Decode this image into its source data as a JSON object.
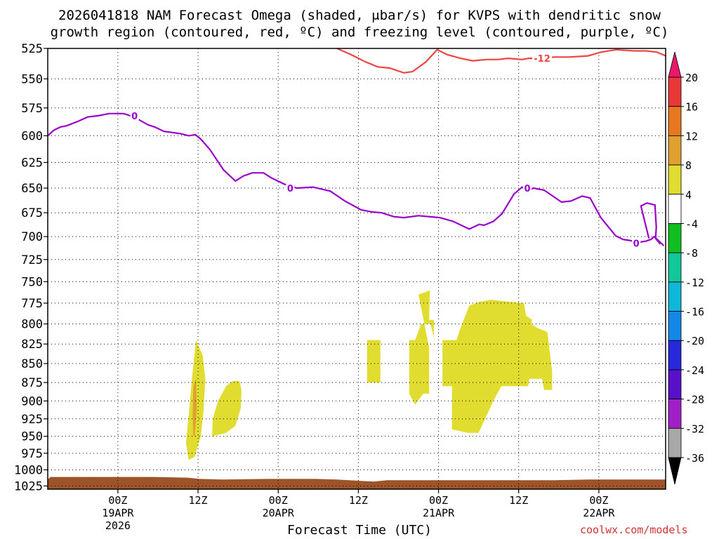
{
  "title": {
    "line1": "2026041818 NAM Forecast Omega (shaded, μbar/s) for KVPS with dendritic snow",
    "line2": "growth region (contoured, red, ºC) and freezing level (contoured, purple, ºC)"
  },
  "watermark": "coolwx.com/models",
  "colors": {
    "dgz_contour": "#ee4444",
    "freezing_contour": "#9900cc",
    "terrain": "#9c5428",
    "omega_4_8": "#e0dc30",
    "omega_8_12": "#e0a030",
    "watermark": "#cc3333"
  },
  "chart_data": {
    "type": "time-height cross section",
    "xlabel": "Forecast Time (UTC)",
    "ylabel": "",
    "y_scale": "log-pressure",
    "y_reversed": true,
    "ylim_hpa": [
      1030,
      525
    ],
    "xlim_hours": [
      -4.5,
      88
    ],
    "grid": "dotted",
    "y_ticks": [
      525,
      550,
      575,
      600,
      625,
      650,
      675,
      700,
      725,
      750,
      775,
      800,
      825,
      850,
      875,
      900,
      925,
      950,
      975,
      1000,
      1025
    ],
    "x_ticks": [
      {
        "hour": 6,
        "label": "00Z",
        "sub1": "19APR",
        "sub2": "2026"
      },
      {
        "hour": 18,
        "label": "12Z",
        "sub1": "",
        "sub2": ""
      },
      {
        "hour": 30,
        "label": "00Z",
        "sub1": "20APR",
        "sub2": ""
      },
      {
        "hour": 42,
        "label": "12Z",
        "sub1": "",
        "sub2": ""
      },
      {
        "hour": 54,
        "label": "00Z",
        "sub1": "21APR",
        "sub2": ""
      },
      {
        "hour": 66,
        "label": "12Z",
        "sub1": "",
        "sub2": ""
      },
      {
        "hour": 78,
        "label": "00Z",
        "sub1": "22APR",
        "sub2": ""
      }
    ],
    "colorbar": {
      "min_label": "-36",
      "max_label": "20",
      "intervals": [
        {
          "low": -36,
          "high": -32,
          "color": "#a8a8a8"
        },
        {
          "low": -32,
          "high": -28,
          "color": "#a020c8"
        },
        {
          "low": -28,
          "high": -24,
          "color": "#5810c8"
        },
        {
          "low": -24,
          "high": -20,
          "color": "#2828dc"
        },
        {
          "low": -20,
          "high": -16,
          "color": "#1488e8"
        },
        {
          "low": -16,
          "high": -12,
          "color": "#10b8d8"
        },
        {
          "low": -12,
          "high": -8,
          "color": "#10c898"
        },
        {
          "low": -8,
          "high": -4,
          "color": "#10c020"
        },
        {
          "low": -4,
          "high": 4,
          "color": "#ffffff"
        },
        {
          "low": 4,
          "high": 8,
          "color": "#e0dc30"
        },
        {
          "low": 8,
          "high": 12,
          "color": "#e0a030"
        },
        {
          "low": 12,
          "high": 16,
          "color": "#e87820"
        },
        {
          "low": 16,
          "high": 20,
          "color": "#e83838"
        }
      ],
      "labels": [
        "20",
        "16",
        "12",
        "8",
        "4",
        "-4",
        "-8",
        "-12",
        "-16",
        "-20",
        "-24",
        "-28",
        "-32",
        "-36"
      ]
    },
    "freezing_level": {
      "label": "0",
      "points": [
        [
          -4.5,
          600
        ],
        [
          -3.6,
          595
        ],
        [
          -2.6,
          592
        ],
        [
          -1.7,
          591
        ],
        [
          0,
          587
        ],
        [
          1.5,
          583
        ],
        [
          3,
          582
        ],
        [
          4.7,
          580
        ],
        [
          6.8,
          580
        ],
        [
          7.4,
          581
        ],
        [
          8.7,
          584
        ],
        [
          10.5,
          590
        ],
        [
          11.5,
          592
        ],
        [
          12.9,
          596
        ],
        [
          15.3,
          598
        ],
        [
          16.6,
          600
        ],
        [
          17.6,
          599
        ],
        [
          18.4,
          603
        ],
        [
          19.8,
          613
        ],
        [
          21.8,
          632
        ],
        [
          23.6,
          643
        ],
        [
          24.8,
          638
        ],
        [
          26.1,
          635
        ],
        [
          27.8,
          635
        ],
        [
          29,
          640
        ],
        [
          30.9,
          646
        ],
        [
          32.8,
          650
        ],
        [
          35.2,
          649
        ],
        [
          37.8,
          653
        ],
        [
          40,
          663
        ],
        [
          42.4,
          672
        ],
        [
          43.9,
          674
        ],
        [
          45.5,
          675
        ],
        [
          47.3,
          679
        ],
        [
          48.8,
          680
        ],
        [
          51,
          678
        ],
        [
          54.2,
          680
        ],
        [
          56.2,
          684
        ],
        [
          58.6,
          692
        ],
        [
          60.1,
          687
        ],
        [
          60.8,
          688
        ],
        [
          62.2,
          684
        ],
        [
          63.5,
          676
        ],
        [
          65.3,
          656
        ],
        [
          66.5,
          649
        ],
        [
          67.6,
          652
        ],
        [
          68.2,
          650
        ],
        [
          69.8,
          652
        ],
        [
          72.4,
          664
        ],
        [
          73.8,
          663
        ],
        [
          75.5,
          658
        ],
        [
          76.7,
          660
        ],
        [
          78.3,
          680
        ],
        [
          80.5,
          699
        ],
        [
          81.6,
          703
        ],
        [
          84.1,
          706
        ],
        [
          85,
          705
        ],
        [
          85.8,
          703
        ],
        [
          86.3,
          700
        ],
        [
          87.6,
          709
        ],
        [
          87.7,
          710
        ]
      ],
      "loop": [
        [
          85.5,
          702
        ],
        [
          84.3,
          668
        ],
        [
          85.2,
          665
        ],
        [
          86.4,
          667
        ],
        [
          86.6,
          690
        ],
        [
          86.5,
          702
        ],
        [
          87.2,
          708
        ]
      ],
      "label_points": [
        [
          8.5,
          582
        ],
        [
          31.8,
          650
        ],
        [
          67.3,
          650
        ],
        [
          83.6,
          707
        ]
      ]
    },
    "dgz_contour": {
      "label": "-12",
      "points": [
        [
          38.8,
          525
        ],
        [
          40.9,
          530
        ],
        [
          43.1,
          536
        ],
        [
          44.9,
          540
        ],
        [
          46.7,
          541
        ],
        [
          48.8,
          545
        ],
        [
          50.1,
          544
        ],
        [
          52.1,
          536
        ],
        [
          53.8,
          526
        ],
        [
          55.3,
          530
        ],
        [
          57.3,
          533
        ],
        [
          59.1,
          535
        ],
        [
          61.3,
          534
        ],
        [
          62.9,
          534
        ],
        [
          64.4,
          533
        ],
        [
          66.5,
          534
        ],
        [
          67.5,
          533
        ],
        [
          68.8,
          533
        ],
        [
          71.3,
          532
        ],
        [
          73.5,
          532
        ],
        [
          76.4,
          531
        ],
        [
          78.3,
          528
        ],
        [
          80.6,
          526
        ],
        [
          83.3,
          527
        ],
        [
          85.1,
          527
        ],
        [
          86.7,
          528
        ],
        [
          88,
          531
        ]
      ],
      "label_point": [
        69.5,
        533
      ]
    },
    "omega_regions": [
      {
        "value_range": "4 to 8",
        "points": [
          [
            16.6,
            985
          ],
          [
            17.5,
            980
          ],
          [
            18.4,
            950
          ],
          [
            18.8,
            915
          ],
          [
            19.1,
            870
          ],
          [
            18.7,
            840
          ],
          [
            17.7,
            820
          ],
          [
            17.2,
            860
          ],
          [
            16.6,
            920
          ],
          [
            16.2,
            960
          ]
        ]
      },
      {
        "value_range": "8 to 12",
        "points": [
          [
            17.5,
            950
          ],
          [
            17.8,
            910
          ],
          [
            17.7,
            870
          ],
          [
            17.3,
            880
          ],
          [
            17.2,
            920
          ],
          [
            17.3,
            950
          ]
        ]
      },
      {
        "value_range": "4 to 8",
        "points": [
          [
            20.1,
            950
          ],
          [
            22.2,
            945
          ],
          [
            23.6,
            935
          ],
          [
            24.4,
            910
          ],
          [
            24.5,
            885
          ],
          [
            24.2,
            873
          ],
          [
            23.2,
            873
          ],
          [
            22.2,
            880
          ],
          [
            21,
            900
          ],
          [
            20.2,
            925
          ]
        ]
      },
      {
        "value_range": "4 to 8",
        "points": [
          [
            43.3,
            820
          ],
          [
            45.3,
            820
          ],
          [
            45.3,
            875
          ],
          [
            43.3,
            875
          ]
        ]
      },
      {
        "value_range": "4 to 8",
        "points": [
          [
            51,
            765
          ],
          [
            52.7,
            760
          ],
          [
            52.6,
            795
          ],
          [
            53.3,
            795
          ],
          [
            53.3,
            820
          ],
          [
            54.6,
            820
          ],
          [
            54.6,
            880
          ],
          [
            56,
            880
          ],
          [
            56,
            940
          ],
          [
            58.4,
            945
          ],
          [
            60,
            945
          ],
          [
            62.2,
            900
          ],
          [
            63.4,
            880
          ],
          [
            67.4,
            880
          ],
          [
            67.6,
            870
          ],
          [
            69.5,
            870
          ],
          [
            69.8,
            885
          ],
          [
            71,
            885
          ],
          [
            71,
            860
          ],
          [
            70.3,
            810
          ],
          [
            68.8,
            805
          ],
          [
            67.9,
            800
          ],
          [
            68,
            795
          ],
          [
            67.1,
            790
          ],
          [
            66.8,
            775
          ],
          [
            64.1,
            773
          ],
          [
            61.8,
            771
          ],
          [
            59.9,
            774
          ],
          [
            58.6,
            778
          ],
          [
            57.3,
            805
          ],
          [
            56.7,
            820
          ],
          [
            53.4,
            820
          ],
          [
            52.8,
            800
          ],
          [
            51.4,
            800
          ],
          [
            50.5,
            820
          ],
          [
            49.6,
            820
          ],
          [
            49.6,
            890
          ],
          [
            50.5,
            905
          ],
          [
            51.3,
            895
          ],
          [
            51.7,
            890
          ],
          [
            52.6,
            890
          ],
          [
            52.6,
            830
          ]
        ]
      }
    ],
    "terrain_top": [
      [
        -4.5,
        1015
      ],
      [
        -4.1,
        1011
      ],
      [
        4.2,
        1011
      ],
      [
        11.3,
        1011
      ],
      [
        16.4,
        1012
      ],
      [
        18.3,
        1014
      ],
      [
        21.7,
        1015
      ],
      [
        28.4,
        1014
      ],
      [
        32.1,
        1014
      ],
      [
        35.6,
        1014
      ],
      [
        38.7,
        1015
      ],
      [
        42.4,
        1017
      ],
      [
        44.3,
        1018
      ],
      [
        46.3,
        1016
      ],
      [
        52.1,
        1016
      ],
      [
        56.6,
        1016
      ],
      [
        64.1,
        1016
      ],
      [
        71.3,
        1016
      ],
      [
        76.5,
        1015
      ],
      [
        81.8,
        1015
      ],
      [
        88,
        1015
      ]
    ]
  }
}
